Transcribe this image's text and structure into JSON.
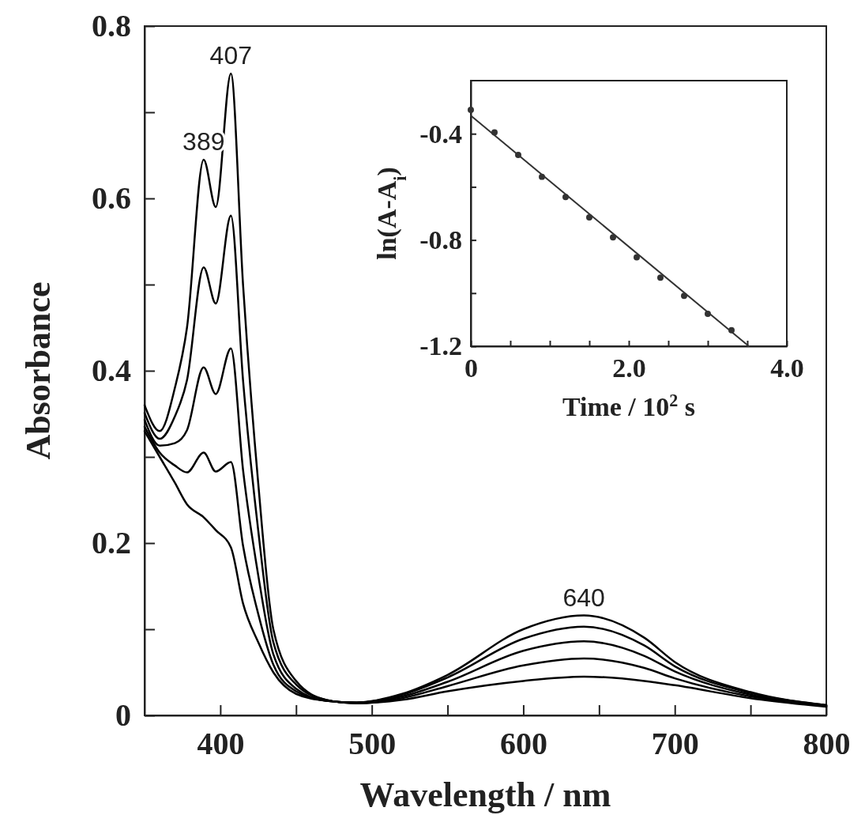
{
  "chart_data": [
    {
      "type": "line",
      "xlabel": "Wavelength / nm",
      "ylabel": "Absorbance",
      "x": [
        350,
        360,
        370,
        378,
        389,
        397,
        407,
        415,
        425,
        435,
        450,
        470,
        490,
        520,
        550,
        600,
        640,
        680,
        700,
        750,
        800
      ],
      "series": [
        {
          "color": "#000000",
          "values": [
            0.36,
            0.33,
            0.38,
            0.45,
            0.645,
            0.59,
            0.745,
            0.5,
            0.27,
            0.1,
            0.04,
            0.018,
            0.014,
            0.018,
            0.028,
            0.04,
            0.045,
            0.04,
            0.035,
            0.02,
            0.01
          ]
        },
        {
          "color": "#000000",
          "values": [
            0.351,
            0.321,
            0.347,
            0.389,
            0.52,
            0.478,
            0.58,
            0.389,
            0.215,
            0.085,
            0.036,
            0.018,
            0.014,
            0.02,
            0.034,
            0.058,
            0.066,
            0.055,
            0.043,
            0.022,
            0.011
          ]
        },
        {
          "color": "#000000",
          "values": [
            0.343,
            0.313,
            0.316,
            0.331,
            0.404,
            0.373,
            0.426,
            0.285,
            0.163,
            0.071,
            0.031,
            0.017,
            0.015,
            0.022,
            0.039,
            0.075,
            0.086,
            0.069,
            0.051,
            0.024,
            0.011
          ]
        },
        {
          "color": "#000000",
          "values": [
            0.335,
            0.305,
            0.29,
            0.282,
            0.305,
            0.283,
            0.294,
            0.197,
            0.118,
            0.059,
            0.028,
            0.017,
            0.015,
            0.024,
            0.044,
            0.089,
            0.103,
            0.081,
            0.057,
            0.026,
            0.012
          ]
        },
        {
          "color": "#000000",
          "values": [
            0.33,
            0.3,
            0.27,
            0.245,
            0.23,
            0.215,
            0.195,
            0.13,
            0.085,
            0.05,
            0.025,
            0.017,
            0.015,
            0.025,
            0.047,
            0.1,
            0.116,
            0.09,
            0.062,
            0.027,
            0.012
          ]
        }
      ],
      "xlim": [
        350,
        800
      ],
      "ylim": [
        0,
        0.8
      ],
      "xticks": [
        400,
        {
          "value": 450,
          "label": null
        },
        500,
        {
          "value": 550,
          "label": null
        },
        600,
        {
          "value": 650,
          "label": null
        },
        700,
        {
          "value": 750,
          "label": null
        },
        800
      ],
      "yticks": [
        0,
        {
          "value": 0.1,
          "label": null
        },
        0.2,
        {
          "value": 0.3,
          "label": null
        },
        0.4,
        {
          "value": 0.5,
          "label": null
        },
        0.6,
        {
          "value": 0.7,
          "label": null
        },
        0.8
      ],
      "annotations": [
        {
          "text": "389",
          "x": 389,
          "y": 0.645
        },
        {
          "text": "407",
          "x": 407,
          "y": 0.745
        },
        {
          "text": "640",
          "x": 640,
          "y": 0.116
        }
      ],
      "line_style": "solid",
      "grid": false
    },
    {
      "type": "scatter",
      "xlabel": "Time / 10$^{2}$ s",
      "ylabel": "ln(A-A$_{i}$)",
      "x": [
        0,
        0.3,
        0.6,
        0.9,
        1.2,
        1.5,
        1.8,
        2.1,
        2.4,
        2.7,
        3.0,
        3.3
      ],
      "series": [
        {
          "color": "#333333",
          "marker": "circle",
          "values": [
            -0.31,
            -0.395,
            -0.48,
            -0.562,
            -0.638,
            -0.715,
            -0.79,
            -0.865,
            -0.942,
            -1.01,
            -1.078,
            -1.14
          ]
        },
        {
          "type": "line",
          "marker": "none",
          "color": "#333333",
          "x": [
            0,
            3.52
          ],
          "values": [
            -0.332,
            -1.2
          ]
        }
      ],
      "xlim": [
        0,
        4
      ],
      "ylim": [
        -1.2,
        -0.2
      ],
      "xticks": [
        0,
        {
          "value": 0.5,
          "label": null
        },
        {
          "value": 1,
          "label": null
        },
        {
          "value": 1.5,
          "label": null
        },
        {
          "value": 2,
          "label": "2.0"
        },
        {
          "value": 2.5,
          "label": null
        },
        {
          "value": 3,
          "label": null
        },
        {
          "value": 3.5,
          "label": null
        },
        {
          "value": 4,
          "label": "4.0"
        }
      ],
      "yticks": [
        {
          "value": -1.2,
          "label": "-1.2"
        },
        {
          "value": -1.0,
          "label": null
        },
        {
          "value": -0.8,
          "label": "-0.8"
        },
        {
          "value": -0.6,
          "label": null
        },
        {
          "value": -0.4,
          "label": "-0.4"
        }
      ],
      "grid": false
    }
  ]
}
